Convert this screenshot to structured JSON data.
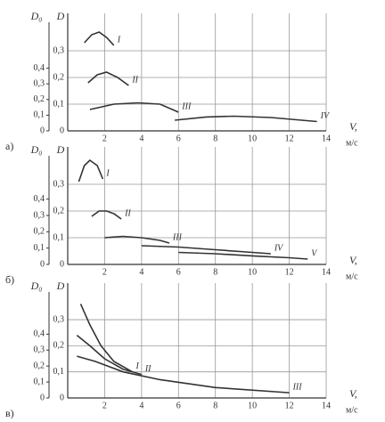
{
  "chart_data": [
    {
      "type": "line",
      "panel_label": "а)",
      "y_label": "D",
      "y2_label": "D₀",
      "x_label": "V,",
      "x_unit": "м/с",
      "xlim": [
        0,
        14
      ],
      "xticks": [
        2,
        4,
        6,
        8,
        10,
        12,
        14
      ],
      "ylim": [
        0,
        0.44
      ],
      "yticks": [
        0,
        {
          "value": 0.1,
          "label": "0,1"
        },
        {
          "value": 0.2,
          "label": "0,2"
        },
        {
          "value": 0.3,
          "label": "0,3"
        }
      ],
      "y2lim": [
        0,
        0.75
      ],
      "y2ticks": [
        0,
        {
          "value": 0.1,
          "label": "0,1"
        },
        {
          "value": 0.2,
          "label": "0,2"
        },
        {
          "value": 0.3,
          "label": "0,3"
        },
        {
          "value": 0.4,
          "label": "0,4"
        }
      ],
      "grid": true,
      "series": [
        {
          "name": "I",
          "color": "#333",
          "x": [
            0.9,
            1.3,
            1.7,
            2.1,
            2.5
          ],
          "values": [
            0.33,
            0.36,
            0.37,
            0.35,
            0.32
          ]
        },
        {
          "name": "II",
          "color": "#333",
          "x": [
            1.1,
            1.6,
            2.1,
            2.7,
            3.3
          ],
          "values": [
            0.18,
            0.21,
            0.22,
            0.2,
            0.17
          ]
        },
        {
          "name": "III",
          "color": "#333",
          "x": [
            1.2,
            2.5,
            3.8,
            5,
            6
          ],
          "values": [
            0.08,
            0.1,
            0.105,
            0.1,
            0.07
          ]
        },
        {
          "name": "IV",
          "color": "#333",
          "x": [
            5.8,
            7.5,
            9,
            11,
            13.5
          ],
          "values": [
            0.04,
            0.052,
            0.055,
            0.05,
            0.035
          ]
        }
      ]
    },
    {
      "type": "line",
      "panel_label": "б)",
      "y_label": "D",
      "y2_label": "D₀",
      "x_label": "V,",
      "x_unit": "м/с",
      "xlim": [
        0,
        14
      ],
      "xticks": [
        2,
        4,
        6,
        8,
        10,
        12,
        14
      ],
      "ylim": [
        0,
        0.44
      ],
      "yticks": [
        0,
        {
          "value": 0.1,
          "label": "0,1"
        },
        {
          "value": 0.2,
          "label": "0,2"
        },
        {
          "value": 0.3,
          "label": "0,3"
        }
      ],
      "y2lim": [
        0,
        0.72
      ],
      "y2ticks": [
        0,
        {
          "value": 0.1,
          "label": "0,1"
        },
        {
          "value": 0.2,
          "label": "0,2"
        },
        {
          "value": 0.3,
          "label": "0,3"
        },
        {
          "value": 0.4,
          "label": "0,4"
        }
      ],
      "grid": true,
      "series": [
        {
          "name": "I",
          "color": "#333",
          "x": [
            0.6,
            0.9,
            1.2,
            1.6,
            1.9
          ],
          "values": [
            0.31,
            0.37,
            0.39,
            0.37,
            0.32
          ]
        },
        {
          "name": "II",
          "color": "#333",
          "x": [
            1.3,
            1.7,
            2.1,
            2.5,
            2.9
          ],
          "values": [
            0.18,
            0.2,
            0.2,
            0.19,
            0.17
          ]
        },
        {
          "name": "III",
          "color": "#333",
          "x": [
            2,
            3,
            4,
            5,
            5.5
          ],
          "values": [
            0.1,
            0.105,
            0.1,
            0.09,
            0.08
          ]
        },
        {
          "name": "IV",
          "color": "#333",
          "x": [
            4,
            6,
            8,
            10,
            11
          ],
          "values": [
            0.07,
            0.065,
            0.055,
            0.045,
            0.04
          ]
        },
        {
          "name": "V",
          "color": "#333",
          "x": [
            6,
            8,
            10,
            12,
            13
          ],
          "values": [
            0.045,
            0.04,
            0.032,
            0.025,
            0.02
          ]
        }
      ]
    },
    {
      "type": "line",
      "panel_label": "в)",
      "y_label": "D",
      "y2_label": "D₀",
      "x_label": "V,",
      "x_unit": "м/с",
      "xlim": [
        0,
        14
      ],
      "xticks": [
        2,
        4,
        6,
        8,
        10,
        12,
        14
      ],
      "ylim": [
        0,
        0.44
      ],
      "yticks": [
        0,
        {
          "value": 0.1,
          "label": "0,1"
        },
        {
          "value": 0.2,
          "label": "0,2"
        },
        {
          "value": 0.3,
          "label": "0,3"
        }
      ],
      "y2lim": [
        0,
        0.72
      ],
      "y2ticks": [
        0,
        {
          "value": 0.1,
          "label": "0,1"
        },
        {
          "value": 0.2,
          "label": "0,2"
        },
        {
          "value": 0.3,
          "label": "0,3"
        },
        {
          "value": 0.4,
          "label": "0,4"
        }
      ],
      "grid": true,
      "series": [
        {
          "name": "I",
          "color": "#333",
          "x": [
            0.7,
            1.2,
            1.8,
            2.5,
            3.5
          ],
          "values": [
            0.36,
            0.28,
            0.2,
            0.14,
            0.1
          ]
        },
        {
          "name": "II",
          "color": "#333",
          "x": [
            0.5,
            1.2,
            2,
            3,
            4
          ],
          "values": [
            0.24,
            0.2,
            0.15,
            0.11,
            0.09
          ]
        },
        {
          "name": "III",
          "color": "#333",
          "x": [
            0.5,
            1.5,
            3,
            5,
            8,
            12
          ],
          "values": [
            0.16,
            0.14,
            0.1,
            0.07,
            0.04,
            0.02
          ]
        }
      ]
    }
  ]
}
